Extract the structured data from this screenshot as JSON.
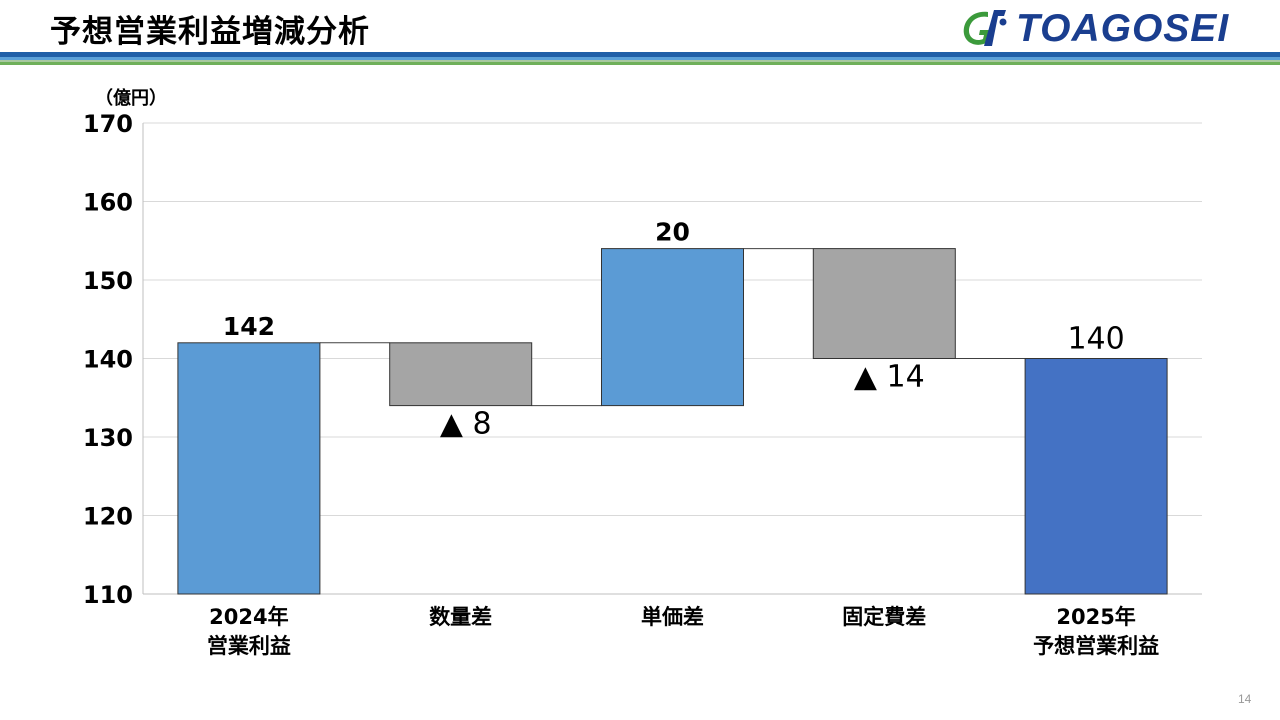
{
  "header": {
    "title": "予想営業利益増減分析",
    "logo_text": "TOAGOSEI"
  },
  "page_number": "14",
  "colors": {
    "blue_bar": "#5b9bd5",
    "gray_bar": "#a5a5a5",
    "dark_blue_bar": "#4472c4"
  },
  "chart_data": {
    "type": "bar",
    "subtype": "waterfall",
    "unit_label": "（億円）",
    "ylim": [
      110,
      170
    ],
    "yticks": [
      110,
      120,
      130,
      140,
      150,
      160,
      170
    ],
    "grid": true,
    "categories": [
      [
        "2024年",
        "営業利益"
      ],
      [
        "数量差"
      ],
      [
        "単価差"
      ],
      [
        "固定費差"
      ],
      [
        "2025年",
        "予想営業利益"
      ]
    ],
    "values": [
      142,
      -8,
      20,
      -14,
      140
    ],
    "kinds": [
      "total",
      "delta",
      "delta",
      "delta",
      "total"
    ],
    "data_labels": [
      "142",
      "▲ 8",
      "20",
      "▲ 14",
      "140"
    ]
  }
}
